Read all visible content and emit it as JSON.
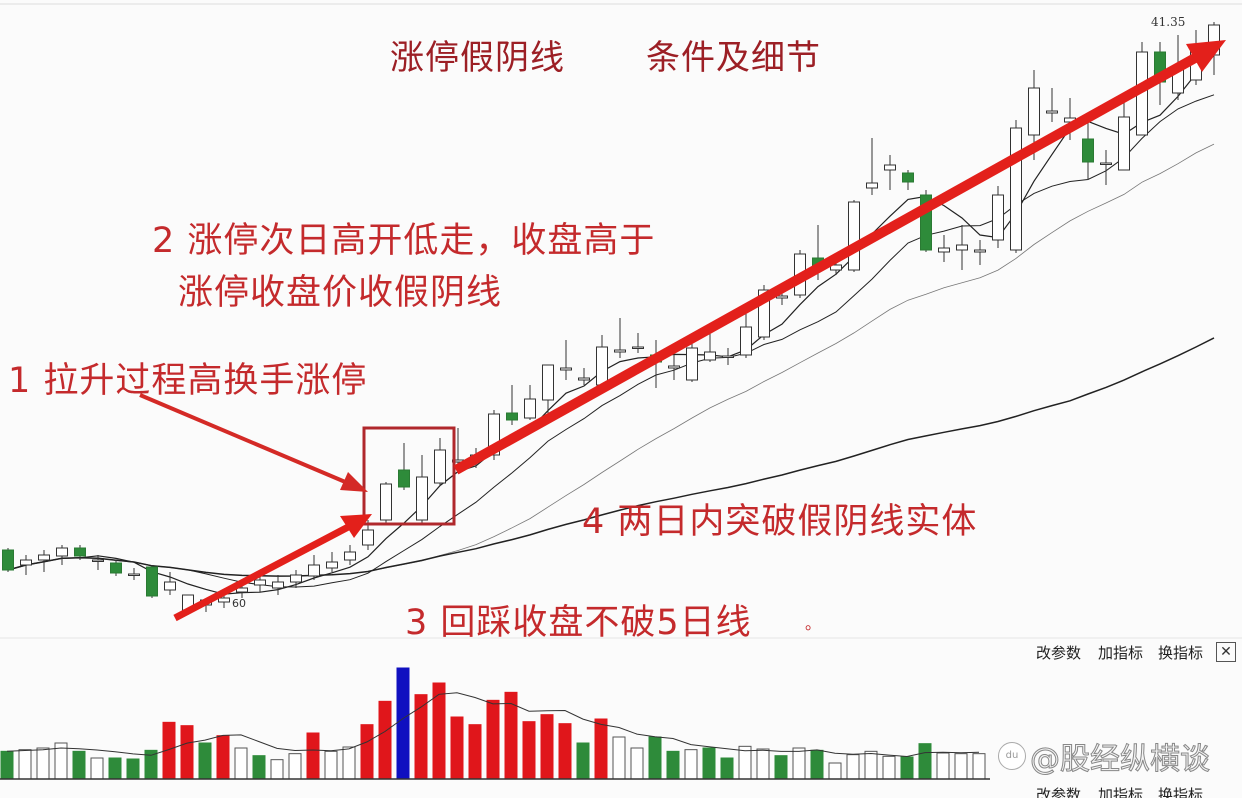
{
  "annotations": {
    "title_left": "涨停假阴线",
    "title_right": "条件及细节",
    "point2_line1": "2 涨停次日高开低走，收盘高于",
    "point2_line2": "涨停收盘价收假阴线",
    "point1": "1 拉升过程高换手涨停",
    "point4": "4 两日内突破假阴线实体",
    "point3": "3 回踩收盘不破5日线",
    "point3_mark": "。"
  },
  "price_label": "41.35",
  "low_label": "60",
  "toolbar": {
    "items": [
      "改参数",
      "加指标",
      "换指标"
    ],
    "close_label": "✕"
  },
  "watermark": {
    "logo": "du",
    "text": "@股经纵横谈"
  },
  "colors": {
    "up": "#ffffff",
    "down": "#2e8b3a",
    "volume_up": "#e0161b",
    "volume_down": "#2e8b3a",
    "volume_peak": "#1010c0",
    "arrow": "#e3201b",
    "box": "#b0282c",
    "text": "#c42a2c"
  },
  "chart_data": [
    {
      "type": "candlestick",
      "title": "",
      "highlight_price": 41.35,
      "moving_averages": [
        5,
        10,
        20,
        60
      ],
      "candles_ochl": [
        [
          20.23,
          19.43,
          20.31,
          19.35
        ],
        [
          19.63,
          19.83,
          20.03,
          19.23
        ],
        [
          19.83,
          20.03,
          20.23,
          19.35
        ],
        [
          19.99,
          20.31,
          20.43,
          19.63
        ],
        [
          20.31,
          19.99,
          20.43,
          19.83
        ],
        [
          19.83,
          19.83,
          20.03,
          19.43
        ],
        [
          19.71,
          19.31,
          19.83,
          19.19
        ],
        [
          19.27,
          19.27,
          19.51,
          19.03
        ],
        [
          19.55,
          18.39,
          19.63,
          18.31
        ],
        [
          18.63,
          18.95,
          19.35,
          18.43
        ],
        [
          17.83,
          18.43,
          18.43,
          17.63
        ],
        [
          18.03,
          18.23,
          18.31,
          17.75
        ],
        [
          18.15,
          18.31,
          18.55,
          17.91
        ],
        [
          18.55,
          18.71,
          18.83,
          18.31
        ],
        [
          18.83,
          19.03,
          19.23,
          18.55
        ],
        [
          18.71,
          18.95,
          19.23,
          18.43
        ],
        [
          18.95,
          19.23,
          19.43,
          18.71
        ],
        [
          19.19,
          19.63,
          20.03,
          19.03
        ],
        [
          19.51,
          19.75,
          20.15,
          19.35
        ],
        [
          19.83,
          20.15,
          20.43,
          19.63
        ],
        [
          20.43,
          21.03,
          21.43,
          20.23
        ],
        [
          21.43,
          22.87,
          22.95,
          21.23
        ],
        [
          23.43,
          22.75,
          24.51,
          22.63
        ],
        [
          21.43,
          23.15,
          24.03,
          21.31
        ],
        [
          22.91,
          24.23,
          24.71,
          22.79
        ],
        [
          23.75,
          23.83,
          25.11,
          23.43
        ],
        [
          23.91,
          24.03,
          24.31,
          23.51
        ],
        [
          24.03,
          25.67,
          25.83,
          23.83
        ],
        [
          25.71,
          25.43,
          26.83,
          25.23
        ],
        [
          25.51,
          26.27,
          26.83,
          25.43
        ],
        [
          26.23,
          27.63,
          27.63,
          25.43
        ],
        [
          27.43,
          27.51,
          28.63,
          27.03
        ],
        [
          27.03,
          27.11,
          27.51,
          26.83
        ],
        [
          26.83,
          28.35,
          28.83,
          26.63
        ],
        [
          28.15,
          28.23,
          29.51,
          27.91
        ],
        [
          28.31,
          28.35,
          28.91,
          28.11
        ],
        [
          28.03,
          27.75,
          28.63,
          26.71
        ],
        [
          27.51,
          27.59,
          28.03,
          27.03
        ],
        [
          27.03,
          28.31,
          28.55,
          26.95
        ],
        [
          27.83,
          28.15,
          28.91,
          27.75
        ],
        [
          27.99,
          27.99,
          28.31,
          27.63
        ],
        [
          28.03,
          29.15,
          29.83,
          27.91
        ],
        [
          28.75,
          30.63,
          30.83,
          28.63
        ],
        [
          30.31,
          30.39,
          30.83,
          30.03
        ],
        [
          30.43,
          32.07,
          32.23,
          30.31
        ],
        [
          31.91,
          31.59,
          33.23,
          31.03
        ],
        [
          31.43,
          31.63,
          32.03,
          31.23
        ],
        [
          31.43,
          34.15,
          34.23,
          31.35
        ],
        [
          34.71,
          34.91,
          36.71,
          34.43
        ],
        [
          35.43,
          35.63,
          36.03,
          34.63
        ],
        [
          35.31,
          34.95,
          35.43,
          34.63
        ],
        [
          34.43,
          32.23,
          34.63,
          32.15
        ],
        [
          32.15,
          32.31,
          32.83,
          31.75
        ],
        [
          32.23,
          32.43,
          33.23,
          31.43
        ],
        [
          32.15,
          32.23,
          32.63,
          31.63
        ],
        [
          32.63,
          34.43,
          34.79,
          32.31
        ],
        [
          32.23,
          37.11,
          37.43,
          32.11
        ],
        [
          36.83,
          38.71,
          39.43,
          35.83
        ],
        [
          37.71,
          37.79,
          38.71,
          37.35
        ],
        [
          37.35,
          37.51,
          38.31,
          36.63
        ],
        [
          36.67,
          35.75,
          37.51,
          35.03
        ],
        [
          35.71,
          35.71,
          36.23,
          34.83
        ],
        [
          35.43,
          37.55,
          38.23,
          35.43
        ],
        [
          36.83,
          40.15,
          40.55,
          36.83
        ],
        [
          40.15,
          38.95,
          40.55,
          38.03
        ],
        [
          38.51,
          39.51,
          40.83,
          38.23
        ],
        [
          39.03,
          40.23,
          41.03,
          38.83
        ],
        [
          40.03,
          41.23,
          41.35,
          39.23
        ]
      ]
    },
    {
      "type": "bar",
      "title": "",
      "values_relative": [
        83,
        88,
        93,
        108,
        83,
        63,
        63,
        60,
        86,
        170,
        160,
        108,
        130,
        93,
        70,
        58,
        76,
        138,
        83,
        96,
        163,
        233,
        333,
        253,
        288,
        186,
        163,
        236,
        260,
        172,
        193,
        166,
        108,
        180,
        126,
        93,
        126,
        83,
        88,
        93,
        63,
        98,
        90,
        70,
        93,
        86,
        48,
        73,
        83,
        68,
        66,
        106,
        78,
        76,
        76
      ],
      "bar_colors": [
        "down",
        "up-hollow",
        "up-hollow",
        "up-hollow",
        "down",
        "up-hollow",
        "down",
        "down",
        "down",
        "up",
        "up",
        "down",
        "up",
        "up-hollow",
        "down",
        "up-hollow",
        "up-hollow",
        "up",
        "up-hollow",
        "up-hollow",
        "up",
        "up",
        "peak",
        "up",
        "up",
        "up",
        "up",
        "up",
        "up",
        "up",
        "up",
        "up",
        "down",
        "up",
        "up-hollow",
        "up-hollow",
        "down",
        "down",
        "up-hollow",
        "down",
        "down",
        "up-hollow",
        "up-hollow",
        "down",
        "up-hollow",
        "down",
        "up-hollow",
        "up-hollow",
        "up-hollow",
        "up-hollow",
        "down",
        "down",
        "up-hollow",
        "up-hollow",
        "up-hollow"
      ]
    }
  ]
}
